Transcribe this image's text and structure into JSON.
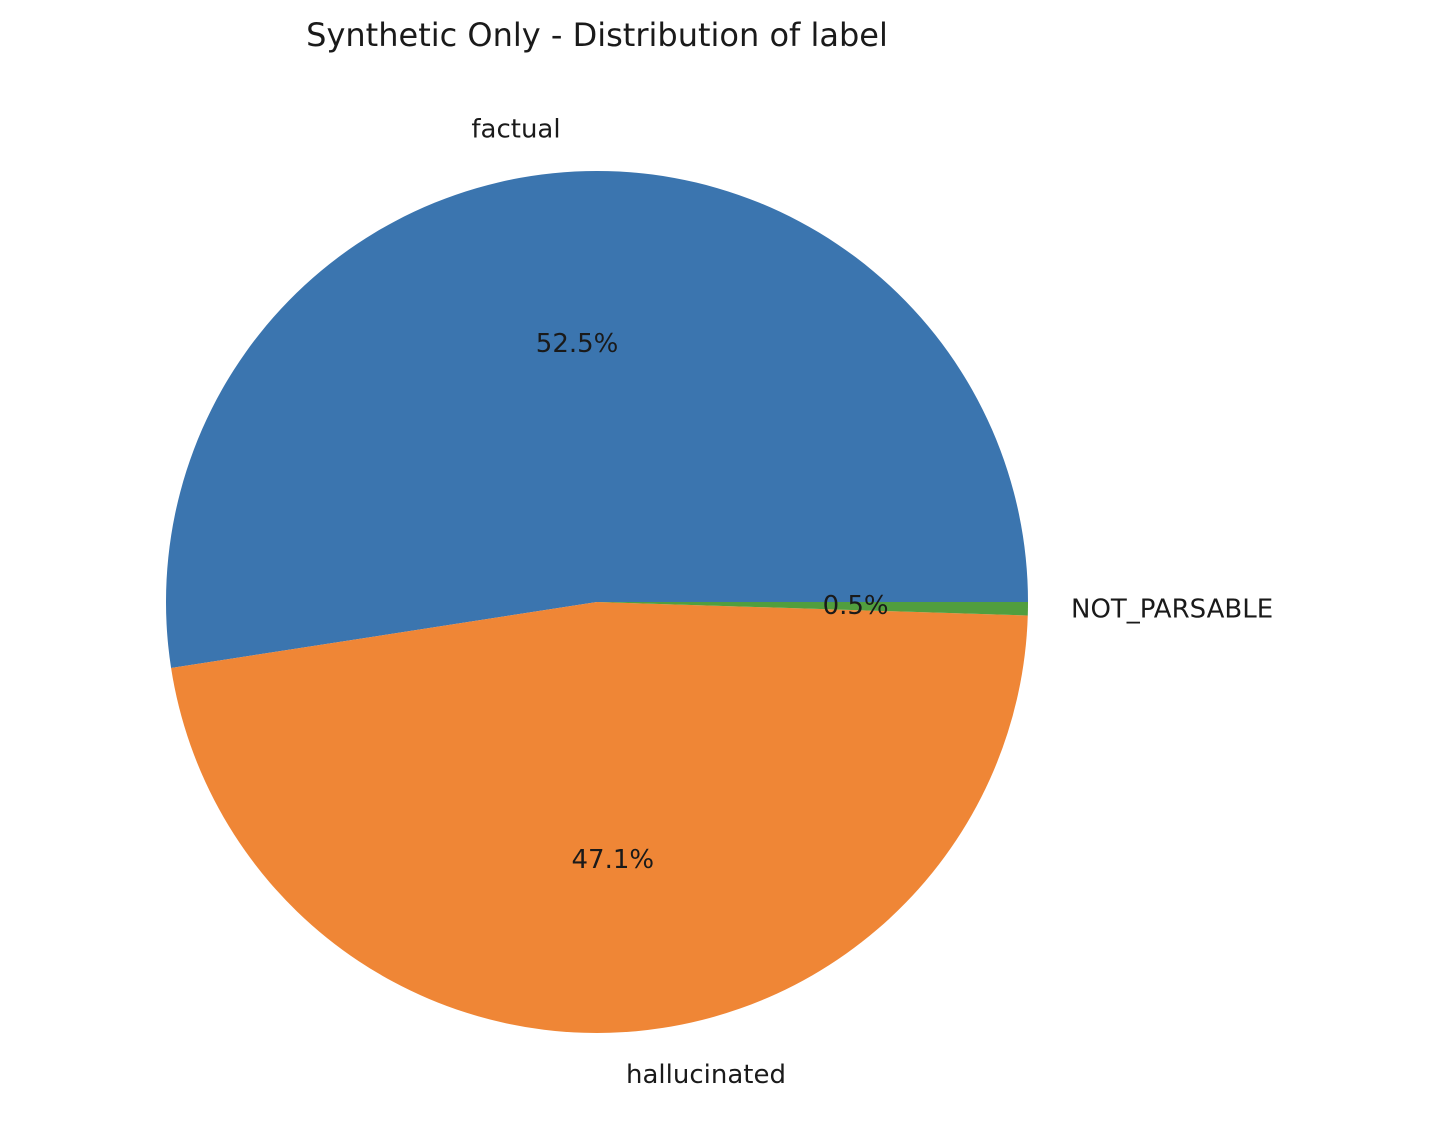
{
  "chart_data": {
    "type": "pie",
    "title": "Synthetic Only - Distribution of label",
    "slices": [
      {
        "label": "factual",
        "value": 52.5,
        "pct_label": "52.5%",
        "color": "#3b75af"
      },
      {
        "label": "hallucinated",
        "value": 47.1,
        "pct_label": "47.1%",
        "color": "#ef8636"
      },
      {
        "label": "NOT_PARSABLE",
        "value": 0.5,
        "pct_label": "0.5%",
        "color": "#519e3e"
      }
    ],
    "start_angle_deg": 0,
    "direction": "counterclockwise"
  }
}
